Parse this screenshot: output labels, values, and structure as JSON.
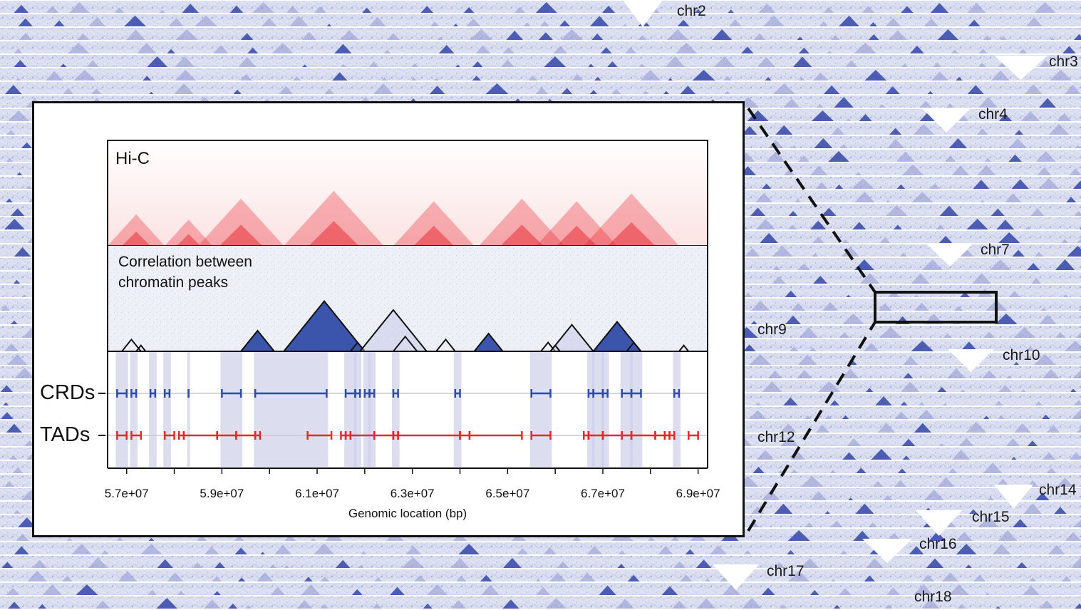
{
  "colors": {
    "track": "#d8dcef",
    "track_dark": "#3346a8",
    "hic": "#e8232d",
    "crd": "#2f4ca6",
    "tad": "#e12a2a",
    "link": "#c9cce8"
  },
  "chromosomes": {
    "chr2": "chr2",
    "chr3": "chr3",
    "chr4": "chr4",
    "chr7": "chr7",
    "chr9": "chr9",
    "chr10": "chr10",
    "chr12": "chr12",
    "chr14": "chr14",
    "chr15": "chr15",
    "chr16": "chr16",
    "chr17": "chr17",
    "chr18": "chr18"
  },
  "inset": {
    "hic_title": "Hi-C",
    "corr_title_line1": "Correlation between",
    "corr_title_line2": "chromatin peaks",
    "crds_label": "CRDs",
    "tads_label": "TADs",
    "xlabel": "Genomic location (bp)",
    "ticks": [
      "5.7e+07",
      "5.9e+07",
      "6.1e+07",
      "6.3e+07",
      "6.5e+07",
      "6.7e+07",
      "6.9e+07"
    ]
  },
  "chart_data": {
    "type": "heatmap",
    "xlabel": "Genomic location (bp)",
    "xlim": [
      56600000,
      69200000
    ],
    "tick_values": [
      57000000,
      59000000,
      61000000,
      63000000,
      65000000,
      67000000,
      69000000
    ],
    "hic_domains": [
      [
        56600000,
        57800000
      ],
      [
        57800000,
        58800000
      ],
      [
        58500000,
        60300000
      ],
      [
        60300000,
        62400000
      ],
      [
        62600000,
        64300000
      ],
      [
        64400000,
        66200000
      ],
      [
        65600000,
        67300000
      ],
      [
        66600000,
        68600000
      ]
    ],
    "correlation_triangles": [
      [
        56900000,
        57300000
      ],
      [
        57200000,
        57400000
      ],
      [
        59400000,
        60100000
      ],
      [
        60300000,
        62000000
      ],
      [
        61700000,
        62000000
      ],
      [
        61900000,
        63300000
      ],
      [
        62600000,
        63100000
      ],
      [
        63500000,
        63900000
      ],
      [
        64300000,
        64900000
      ],
      [
        65700000,
        66000000
      ],
      [
        65900000,
        66800000
      ],
      [
        65900000,
        66100000
      ],
      [
        66800000,
        67800000
      ],
      [
        67500000,
        67800000
      ],
      [
        68600000,
        68800000
      ]
    ],
    "crds": [
      [
        56800000,
        57000000
      ],
      [
        57100000,
        57200000
      ],
      [
        57500000,
        57600000
      ],
      [
        57800000,
        57900000
      ],
      [
        58300000,
        58300000
      ],
      [
        59000000,
        59400000
      ],
      [
        59700000,
        61200000
      ],
      [
        61600000,
        61800000
      ],
      [
        61800000,
        61900000
      ],
      [
        62000000,
        62100000
      ],
      [
        62100000,
        62200000
      ],
      [
        62600000,
        62700000
      ],
      [
        63900000,
        64000000
      ],
      [
        65500000,
        65900000
      ],
      [
        66700000,
        66800000
      ],
      [
        66800000,
        67000000
      ],
      [
        67000000,
        67100000
      ],
      [
        67400000,
        67600000
      ],
      [
        67600000,
        67800000
      ],
      [
        68500000,
        68600000
      ]
    ],
    "tads": [
      [
        56800000,
        57000000
      ],
      [
        57100000,
        57300000
      ],
      [
        57800000,
        58000000
      ],
      [
        58100000,
        58200000
      ],
      [
        58200000,
        58900000
      ],
      [
        58900000,
        59300000
      ],
      [
        59300000,
        59700000
      ],
      [
        59700000,
        59800000
      ],
      [
        60800000,
        61300000
      ],
      [
        61500000,
        61600000
      ],
      [
        61600000,
        61700000
      ],
      [
        61700000,
        62200000
      ],
      [
        62200000,
        62600000
      ],
      [
        62600000,
        62700000
      ],
      [
        62700000,
        64000000
      ],
      [
        64000000,
        64200000
      ],
      [
        64200000,
        65300000
      ],
      [
        65500000,
        65900000
      ],
      [
        66600000,
        66700000
      ],
      [
        66700000,
        67000000
      ],
      [
        67000000,
        67400000
      ],
      [
        67400000,
        67600000
      ],
      [
        67600000,
        68100000
      ],
      [
        68100000,
        68300000
      ],
      [
        68300000,
        68400000
      ],
      [
        68400000,
        68500000
      ],
      [
        68800000,
        69000000
      ]
    ]
  }
}
